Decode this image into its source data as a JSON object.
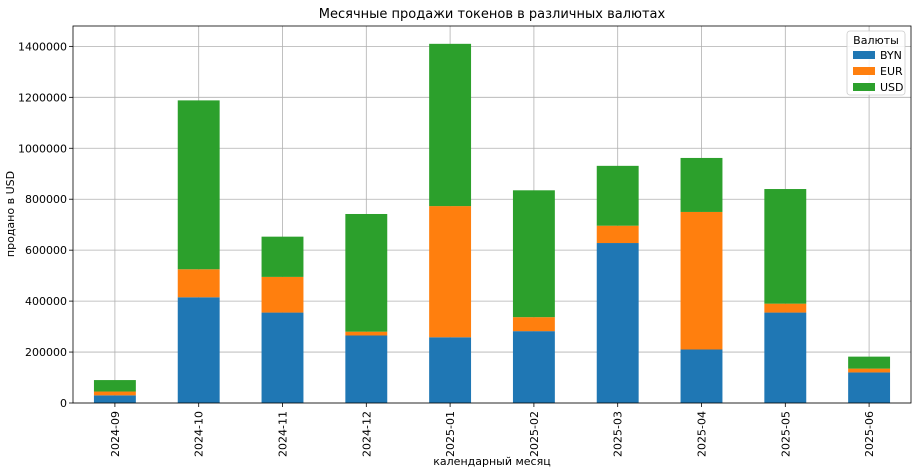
{
  "chart_data": {
    "type": "bar",
    "stacked": true,
    "title": "Месячные продажи токенов в различных валютах",
    "xlabel": "календарный месяц",
    "ylabel": "продано в USD",
    "categories": [
      "2024-09",
      "2024-10",
      "2024-11",
      "2024-12",
      "2025-01",
      "2025-02",
      "2025-03",
      "2025-04",
      "2025-05",
      "2025-06"
    ],
    "series": [
      {
        "name": "BYN",
        "color": "#1f77b4",
        "values": [
          30000,
          415000,
          355000,
          265000,
          258000,
          282000,
          628000,
          210000,
          355000,
          120000
        ]
      },
      {
        "name": "EUR",
        "color": "#ff7f0e",
        "values": [
          15000,
          110000,
          140000,
          15000,
          515000,
          55000,
          68000,
          540000,
          35000,
          15000
        ]
      },
      {
        "name": "USD",
        "color": "#2ca02c",
        "values": [
          45000,
          663000,
          158000,
          462000,
          637000,
          498000,
          235000,
          212000,
          450000,
          47000
        ]
      }
    ],
    "ylim": [
      0,
      1480000
    ],
    "yticks": [
      0,
      200000,
      400000,
      600000,
      800000,
      1000000,
      1200000,
      1400000
    ],
    "grid": true,
    "legend": {
      "title": "Валюты",
      "position": "top-right"
    }
  }
}
